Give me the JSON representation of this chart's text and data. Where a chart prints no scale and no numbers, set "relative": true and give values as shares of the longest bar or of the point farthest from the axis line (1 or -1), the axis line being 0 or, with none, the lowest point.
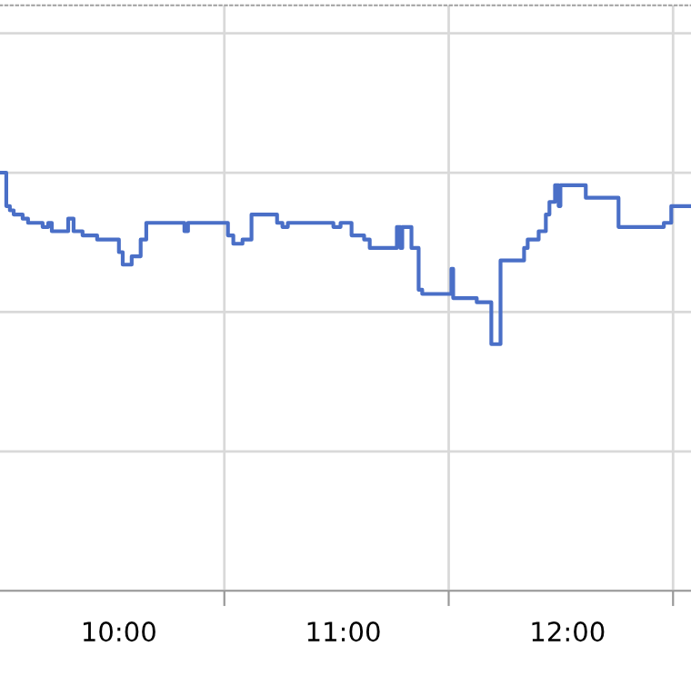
{
  "chart_data": {
    "type": "step",
    "relative": true,
    "grid": true,
    "marker": "none",
    "line_style": "solid",
    "xlim": [
      9.47,
      12.55
    ],
    "xticks": [
      {
        "value": 10,
        "label": "10:00"
      },
      {
        "value": 10.47,
        "label": null
      },
      {
        "value": 11,
        "label": "11:00"
      },
      {
        "value": 11.47,
        "label": null
      },
      {
        "value": 12,
        "label": "12:00"
      },
      {
        "value": 12.47,
        "label": null
      }
    ],
    "series": [
      {
        "color": "#4a6fc7",
        "x": [
          9.474,
          9.498,
          9.514,
          9.531,
          9.571,
          9.595,
          9.636,
          9.66,
          9.685,
          9.701,
          9.774,
          9.798,
          9.838,
          9.879,
          9.903,
          9.984,
          10.0,
          10.017,
          10.041,
          10.057,
          10.097,
          10.122,
          10.284,
          10.292,
          10.308,
          10.462,
          10.486,
          10.51,
          10.551,
          10.583,
          10.591,
          10.624,
          10.689,
          10.705,
          10.729,
          10.753,
          10.931,
          10.956,
          10.988,
          11.037,
          11.093,
          11.118,
          11.158,
          11.239,
          11.255,
          11.263,
          11.272,
          11.304,
          11.336,
          11.352,
          11.482,
          11.49,
          11.595,
          11.66,
          11.701,
          11.806,
          11.822,
          11.871,
          11.903,
          11.919,
          11.944,
          11.96,
          11.968,
          12.0,
          12.025,
          12.081,
          12.227,
          12.308,
          12.389,
          12.429,
          12.462,
          12.543
        ],
        "values": [
          1.0,
          0.92,
          0.91,
          0.9,
          0.89,
          0.88,
          0.88,
          0.87,
          0.88,
          0.86,
          0.89,
          0.86,
          0.85,
          0.85,
          0.84,
          0.84,
          0.81,
          0.78,
          0.78,
          0.8,
          0.84,
          0.88,
          0.88,
          0.86,
          0.88,
          0.88,
          0.85,
          0.83,
          0.84,
          0.84,
          0.9,
          0.9,
          0.9,
          0.88,
          0.87,
          0.88,
          0.88,
          0.87,
          0.88,
          0.85,
          0.84,
          0.82,
          0.82,
          0.87,
          0.82,
          0.87,
          0.87,
          0.82,
          0.72,
          0.71,
          0.77,
          0.7,
          0.69,
          0.59,
          0.79,
          0.82,
          0.84,
          0.86,
          0.9,
          0.93,
          0.97,
          0.92,
          0.97,
          0.97,
          0.97,
          0.94,
          0.87,
          0.87,
          0.87,
          0.88,
          0.92,
          0.92
        ]
      }
    ]
  }
}
